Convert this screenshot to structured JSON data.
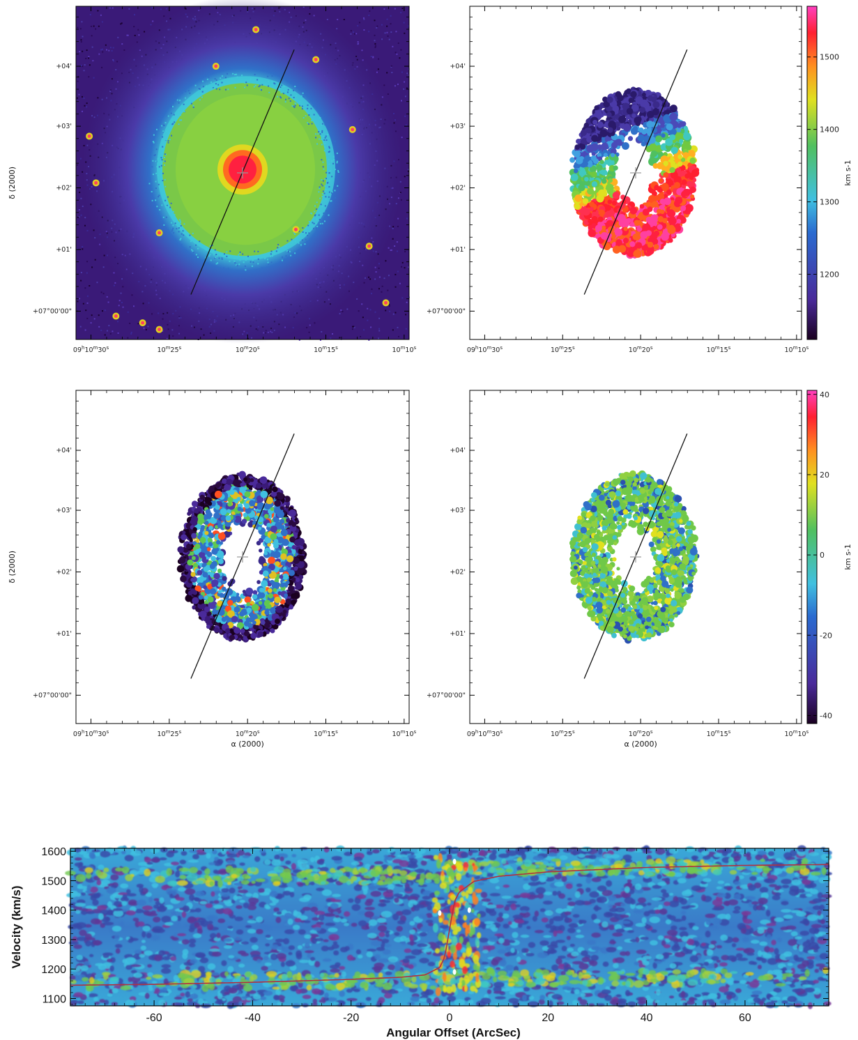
{
  "chart_data": [
    {
      "type": "heatmap",
      "panel": "top-left",
      "description_kind": "image",
      "x_ticks": [
        "09h10m30s",
        "10m25s",
        "10m20s",
        "10m15s",
        "10m10s"
      ],
      "y_ticks": [
        "+07°00'00\"",
        "+01'",
        "+02'",
        "+03'",
        "+04'"
      ],
      "ylabel": "δ (2000)",
      "xlabel": "",
      "slit_line": true,
      "center_cross": true
    },
    {
      "type": "heatmap",
      "panel": "top-right",
      "x_ticks": [
        "09h10m30s",
        "10m25s",
        "10m20s",
        "10m15s",
        "10m10s"
      ],
      "y_ticks": [
        "+07°00'00\"",
        "+01'",
        "+02'",
        "+03'",
        "+04'"
      ],
      "colorbar": {
        "ticks": [
          1200,
          1300,
          1400,
          1500
        ],
        "range": [
          1110,
          1570
        ],
        "label": "km s-1"
      },
      "slit_line": true,
      "center_cross": true
    },
    {
      "type": "heatmap",
      "panel": "middle-left",
      "x_ticks": [
        "09h10m30s",
        "10m25s",
        "10m20s",
        "10m15s",
        "10m10s"
      ],
      "y_ticks": [
        "+07°00'00\"",
        "+01'",
        "+02'",
        "+03'",
        "+04'"
      ],
      "ylabel": "δ (2000)",
      "xlabel": "α (2000)",
      "slit_line": true,
      "center_cross": true
    },
    {
      "type": "heatmap",
      "panel": "middle-right",
      "x_ticks": [
        "09h10m30s",
        "10m25s",
        "10m20s",
        "10m15s",
        "10m10s"
      ],
      "y_ticks": [
        "+07°00'00\"",
        "+01'",
        "+02'",
        "+03'",
        "+04'"
      ],
      "xlabel": "α (2000)",
      "colorbar": {
        "ticks": [
          -40,
          -20,
          0,
          20,
          40
        ],
        "range": [
          -42,
          41
        ],
        "label": "km s-1"
      },
      "slit_line": true,
      "center_cross": true
    },
    {
      "type": "heatmap",
      "panel": "bottom",
      "xlabel": "Angular Offset (ArcSec)",
      "ylabel": "Velocity (km/s)",
      "xlim": [
        -77,
        77
      ],
      "ylim": [
        1075,
        1610
      ],
      "x_ticks": [
        -60,
        -40,
        -20,
        0,
        20,
        40,
        60
      ],
      "y_ticks": [
        1100,
        1200,
        1300,
        1400,
        1500,
        1600
      ],
      "rotation_curve": {
        "x": [
          -77,
          -60,
          -40,
          -20,
          -10,
          -5,
          -2,
          -1,
          0,
          1,
          2,
          5,
          10,
          20,
          40,
          60,
          77
        ],
        "y": [
          1145,
          1148,
          1155,
          1165,
          1172,
          1180,
          1205,
          1240,
          1335,
          1430,
          1462,
          1498,
          1515,
          1530,
          1545,
          1552,
          1555
        ]
      },
      "colors": {
        "curve": "#b03040"
      }
    }
  ],
  "colors": {
    "background": "#ffffff",
    "frame": "#000000"
  }
}
